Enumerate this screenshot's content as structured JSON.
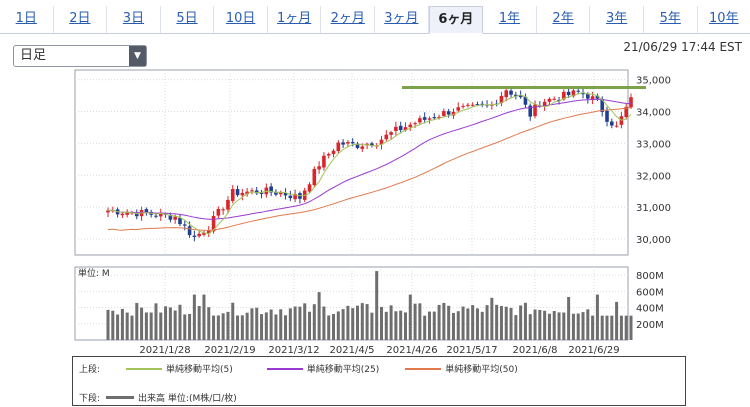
{
  "tabs": [
    {
      "label": "1日",
      "active": false
    },
    {
      "label": "2日",
      "active": false
    },
    {
      "label": "3日",
      "active": false
    },
    {
      "label": "5日",
      "active": false
    },
    {
      "label": "10日",
      "active": false
    },
    {
      "label": "1ヶ月",
      "active": false
    },
    {
      "label": "2ヶ月",
      "active": false
    },
    {
      "label": "3ヶ月",
      "active": false
    },
    {
      "label": "6ヶ月",
      "active": true
    },
    {
      "label": "1年",
      "active": false
    },
    {
      "label": "2年",
      "active": false
    },
    {
      "label": "3年",
      "active": false
    },
    {
      "label": "5年",
      "active": false
    },
    {
      "label": "10年",
      "active": false
    }
  ],
  "period_select": {
    "value": "日足"
  },
  "timestamp": "21/06/29 17:44 EST",
  "colors": {
    "up": "#d9262b",
    "down": "#1f3f8f",
    "ma5": "#a3c35b",
    "ma25": "#9a3bd0",
    "ma50": "#e07a4e",
    "volume": "#6e6e6e",
    "resistance": "#7da34a"
  },
  "chart_data": {
    "type": "candlestick",
    "price_axis": {
      "ylim": [
        29500,
        35300
      ],
      "ticks": [
        "35,000",
        "34,000",
        "33,000",
        "32,000",
        "31,000",
        "30,000"
      ]
    },
    "volume_axis": {
      "unit_label": "単位: M",
      "ylim": [
        0,
        900
      ],
      "ticks": [
        "800M",
        "600M",
        "400M",
        "200M"
      ]
    },
    "x_tick_labels": [
      "2021/1/28",
      "2021/2/19",
      "2021/3/12",
      "2021/4/5",
      "2021/4/26",
      "2021/5/17",
      "2021/6/8",
      "2021/6/29"
    ],
    "resistance_level": 34750
  },
  "legend": {
    "upper_label": "上段:",
    "lower_label": "下段:",
    "ma5": "単純移動平均(5)",
    "ma25": "単純移動平均(25)",
    "ma50": "単純移動平均(50)",
    "volume": "出来高 単位:(M株/口/枚)"
  }
}
